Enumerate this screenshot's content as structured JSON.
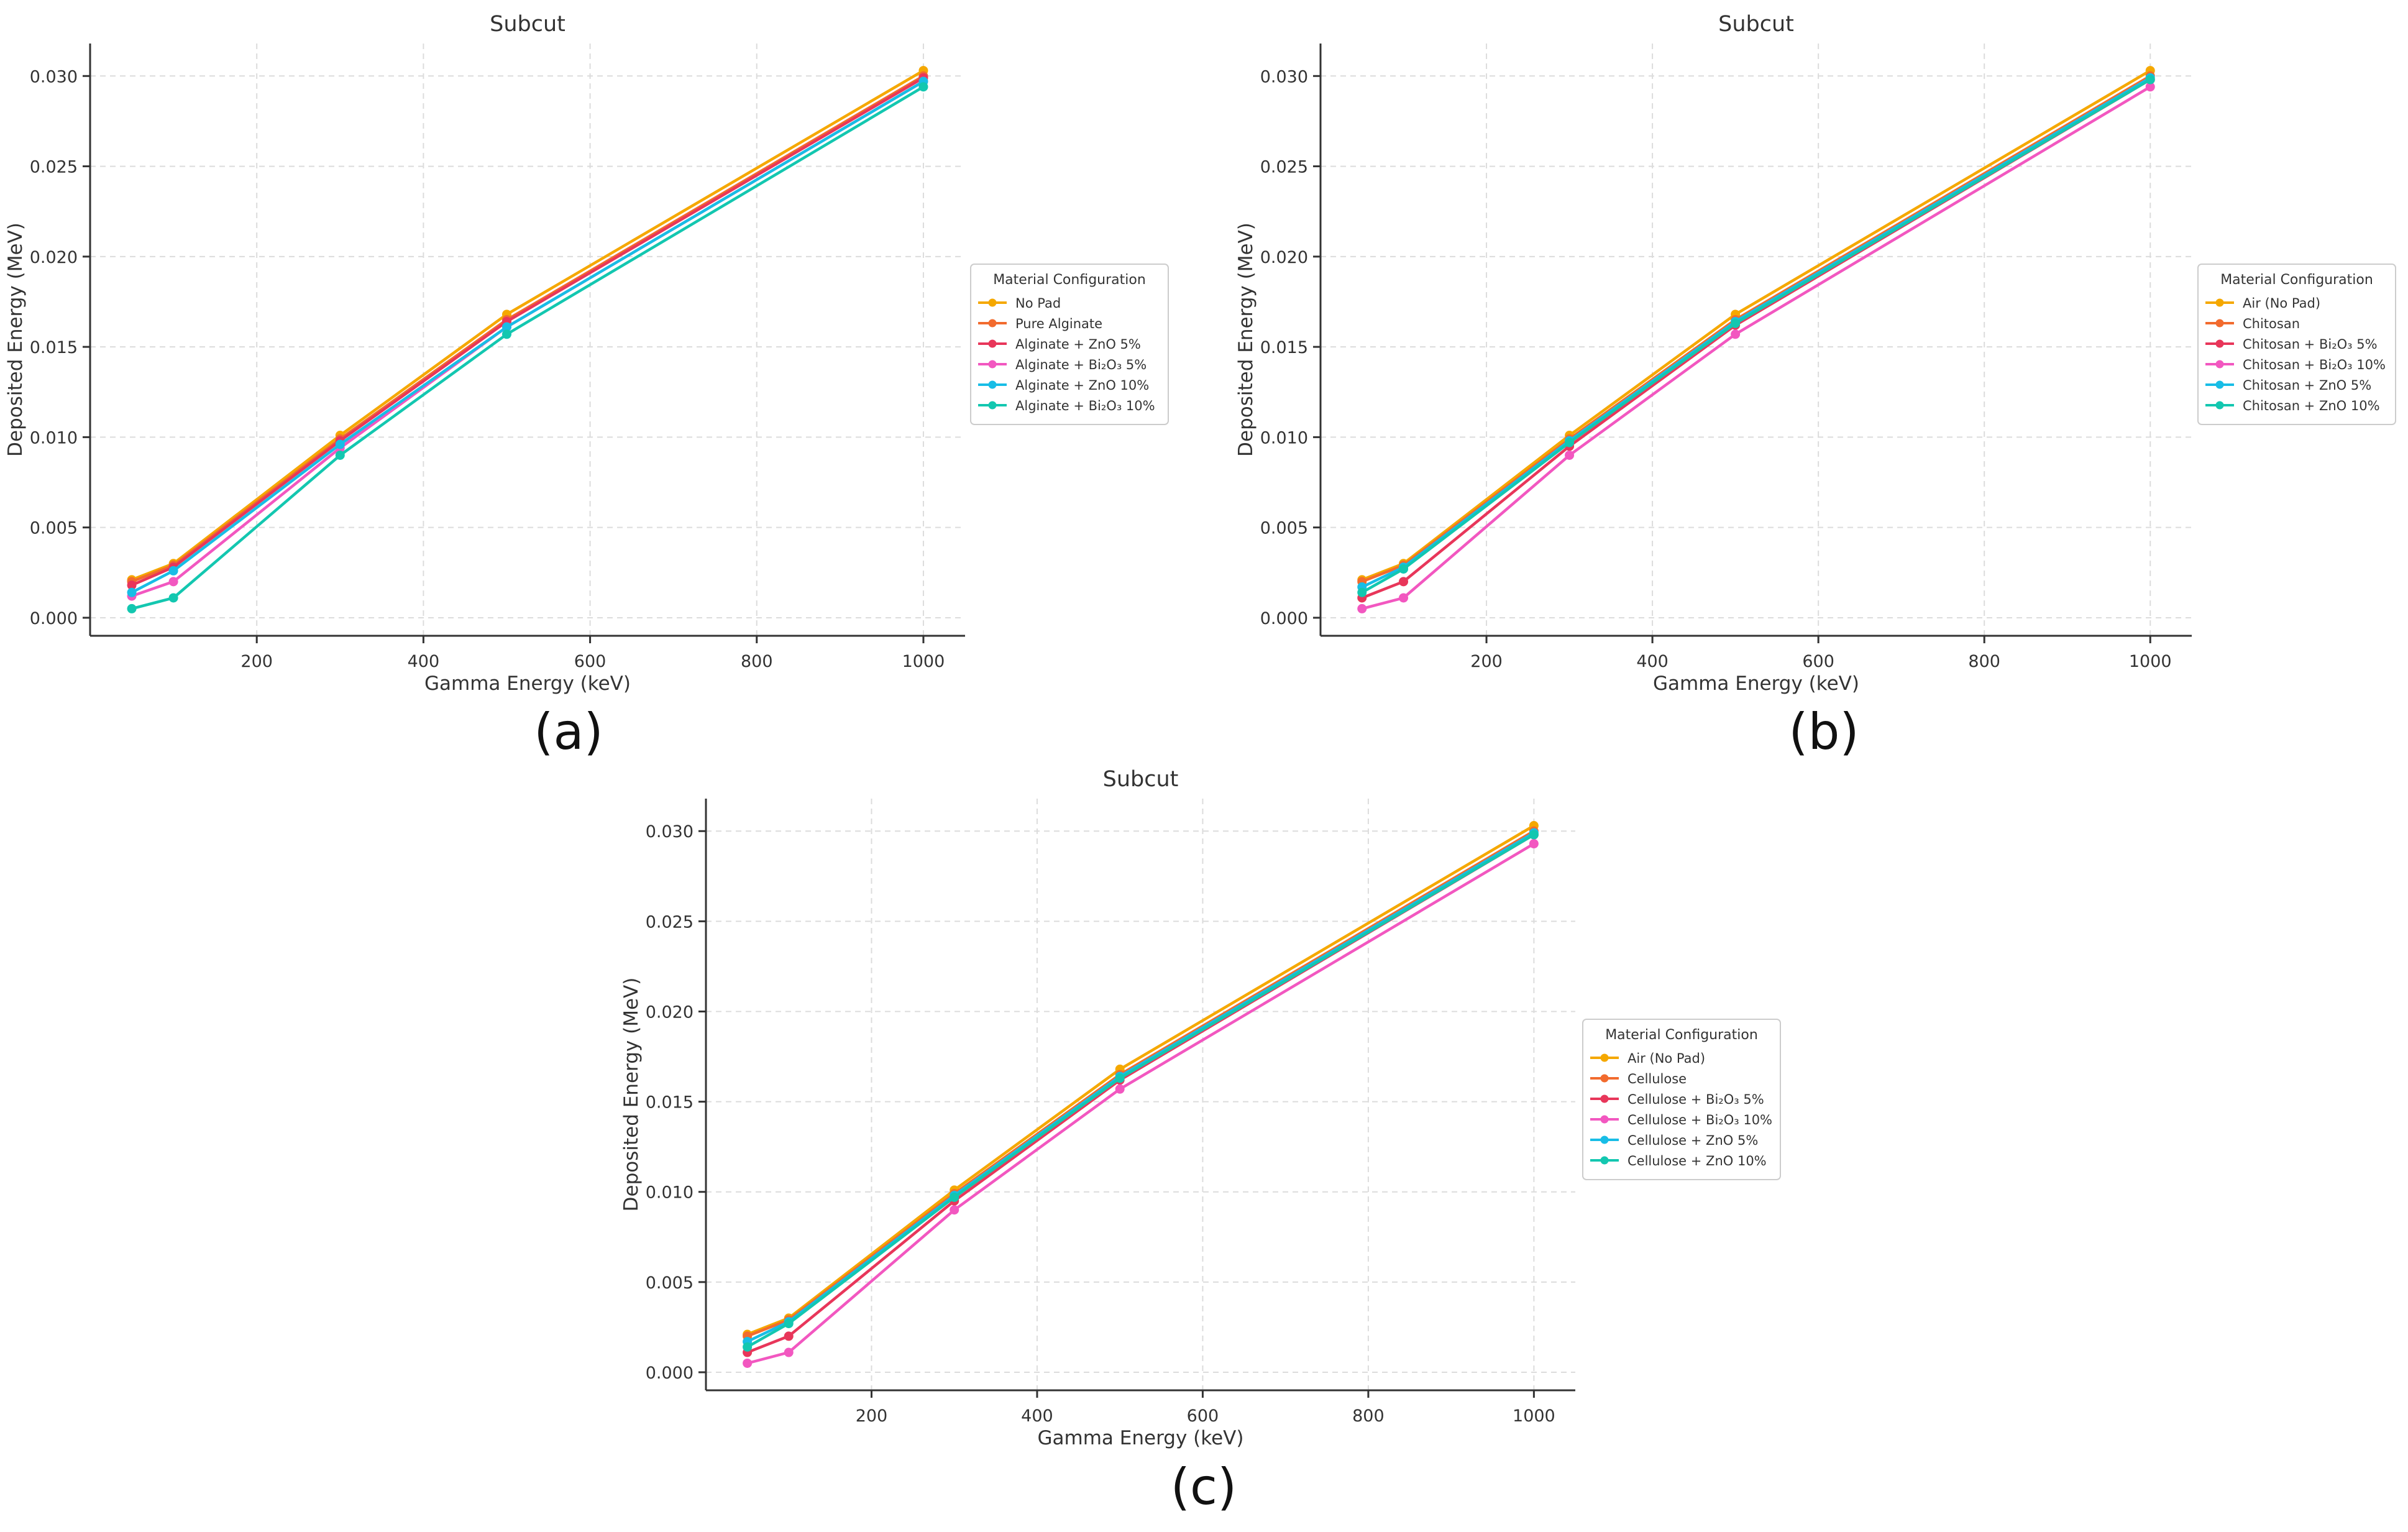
{
  "figure": {
    "panel_labels": [
      "(a)",
      "(b)",
      "(c)"
    ]
  },
  "chart_data": [
    {
      "type": "line",
      "panel": "(a)",
      "title": "Subcut",
      "xlabel": "Gamma Energy (keV)",
      "ylabel": "Deposited Energy (MeV)",
      "xlim": [
        0,
        1050
      ],
      "ylim": [
        -0.001,
        0.0318
      ],
      "xticks": [
        200,
        400,
        600,
        800,
        1000
      ],
      "xtick_labels": [
        "200",
        "400",
        "600",
        "800",
        "1000"
      ],
      "yticks": [
        0.0,
        0.005,
        0.01,
        0.015,
        0.02,
        0.025,
        0.03
      ],
      "ytick_labels": [
        "0.000",
        "0.005",
        "0.010",
        "0.015",
        "0.020",
        "0.025",
        "0.030"
      ],
      "grid": true,
      "legend": {
        "title": "Material Configuration",
        "placement": "center-right outside"
      },
      "x": [
        50,
        100,
        300,
        500,
        1000
      ],
      "series": [
        {
          "name": "No Pad",
          "color": "#f5a800",
          "values": [
            0.0021,
            0.003,
            0.0101,
            0.0168,
            0.0303
          ]
        },
        {
          "name": "Pure Alginate",
          "color": "#f26b2e",
          "values": [
            0.002,
            0.0029,
            0.0099,
            0.0165,
            0.03
          ]
        },
        {
          "name": "Alginate + ZnO 5%",
          "color": "#e8365a",
          "values": [
            0.0018,
            0.0028,
            0.0098,
            0.0164,
            0.0299
          ]
        },
        {
          "name": "Alginate + Bi₂O₃ 5%",
          "color": "#f257c0",
          "values": [
            0.0012,
            0.002,
            0.0094,
            0.0161,
            0.0297
          ]
        },
        {
          "name": "Alginate + ZnO 10%",
          "color": "#18bde6",
          "values": [
            0.0014,
            0.0026,
            0.0096,
            0.0161,
            0.0297
          ]
        },
        {
          "name": "Alginate + Bi₂O₃ 10%",
          "color": "#13c7b0",
          "values": [
            0.0005,
            0.0011,
            0.009,
            0.0157,
            0.0294
          ]
        }
      ]
    },
    {
      "type": "line",
      "panel": "(b)",
      "title": "Subcut",
      "xlabel": "Gamma Energy (keV)",
      "ylabel": "Deposited Energy (MeV)",
      "xlim": [
        0,
        1050
      ],
      "ylim": [
        -0.001,
        0.0318
      ],
      "xticks": [
        200,
        400,
        600,
        800,
        1000
      ],
      "xtick_labels": [
        "200",
        "400",
        "600",
        "800",
        "1000"
      ],
      "yticks": [
        0.0,
        0.005,
        0.01,
        0.015,
        0.02,
        0.025,
        0.03
      ],
      "ytick_labels": [
        "0.000",
        "0.005",
        "0.010",
        "0.015",
        "0.020",
        "0.025",
        "0.030"
      ],
      "grid": true,
      "legend": {
        "title": "Material Configuration",
        "placement": "center-right outside"
      },
      "x": [
        50,
        100,
        300,
        500,
        1000
      ],
      "series": [
        {
          "name": "Air (No Pad)",
          "color": "#f5a800",
          "values": [
            0.0021,
            0.003,
            0.0101,
            0.0168,
            0.0303
          ]
        },
        {
          "name": "Chitosan",
          "color": "#f26b2e",
          "values": [
            0.002,
            0.0029,
            0.0099,
            0.0165,
            0.03
          ]
        },
        {
          "name": "Chitosan + Bi₂O₃ 5%",
          "color": "#e8365a",
          "values": [
            0.0011,
            0.002,
            0.0095,
            0.0162,
            0.0298
          ]
        },
        {
          "name": "Chitosan + Bi₂O₃ 10%",
          "color": "#f257c0",
          "values": [
            0.0005,
            0.0011,
            0.009,
            0.0157,
            0.0294
          ]
        },
        {
          "name": "Chitosan + ZnO 5%",
          "color": "#18bde6",
          "values": [
            0.0017,
            0.0028,
            0.0098,
            0.0164,
            0.0299
          ]
        },
        {
          "name": "Chitosan + ZnO 10%",
          "color": "#13c7b0",
          "values": [
            0.0014,
            0.0027,
            0.0097,
            0.0163,
            0.0298
          ]
        }
      ]
    },
    {
      "type": "line",
      "panel": "(c)",
      "title": "Subcut",
      "xlabel": "Gamma Energy (keV)",
      "ylabel": "Deposited Energy (MeV)",
      "xlim": [
        0,
        1050
      ],
      "ylim": [
        -0.001,
        0.0318
      ],
      "xticks": [
        200,
        400,
        600,
        800,
        1000
      ],
      "xtick_labels": [
        "200",
        "400",
        "600",
        "800",
        "1000"
      ],
      "yticks": [
        0.0,
        0.005,
        0.01,
        0.015,
        0.02,
        0.025,
        0.03
      ],
      "ytick_labels": [
        "0.000",
        "0.005",
        "0.010",
        "0.015",
        "0.020",
        "0.025",
        "0.030"
      ],
      "grid": true,
      "legend": {
        "title": "Material Configuration",
        "placement": "center-right outside"
      },
      "x": [
        50,
        100,
        300,
        500,
        1000
      ],
      "series": [
        {
          "name": "Air (No Pad)",
          "color": "#f5a800",
          "values": [
            0.0021,
            0.003,
            0.0101,
            0.0168,
            0.0303
          ]
        },
        {
          "name": "Cellulose",
          "color": "#f26b2e",
          "values": [
            0.002,
            0.0029,
            0.0099,
            0.0165,
            0.03
          ]
        },
        {
          "name": "Cellulose + Bi₂O₃ 5%",
          "color": "#e8365a",
          "values": [
            0.0011,
            0.002,
            0.0095,
            0.0162,
            0.0298
          ]
        },
        {
          "name": "Cellulose + Bi₂O₃ 10%",
          "color": "#f257c0",
          "values": [
            0.0005,
            0.0011,
            0.009,
            0.0157,
            0.0293
          ]
        },
        {
          "name": "Cellulose + ZnO 5%",
          "color": "#18bde6",
          "values": [
            0.0017,
            0.0028,
            0.0098,
            0.0164,
            0.0299
          ]
        },
        {
          "name": "Cellulose + ZnO 10%",
          "color": "#13c7b0",
          "values": [
            0.0014,
            0.0027,
            0.0097,
            0.0163,
            0.0298
          ]
        }
      ]
    }
  ]
}
